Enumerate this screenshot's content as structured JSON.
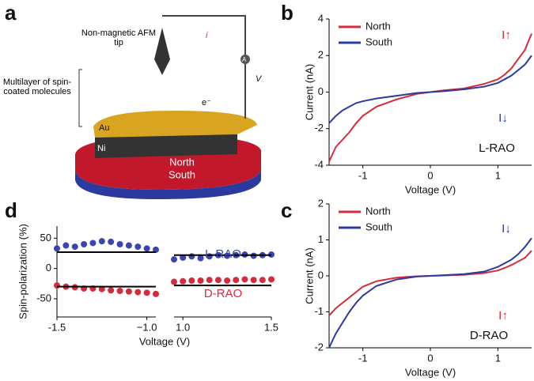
{
  "panels": [
    "a",
    "b",
    "c",
    "d"
  ],
  "diagram": {
    "tip": "Non-magnetic AFM tip",
    "current": "i",
    "voltage": "V",
    "ammeter": "A",
    "electron": "e⁻",
    "multilayer": "Multilayer of spin-coated molecules",
    "gold": "Au",
    "nickel": "Ni",
    "north": "North",
    "south": "South"
  },
  "chart_data": [
    {
      "type": "line",
      "x_label": "Voltage (V)",
      "y_label": "Current (nA)",
      "x": [
        -1.5,
        -1.4,
        -1.3,
        -1.2,
        -1.1,
        -1,
        -0.8,
        -0.5,
        -0.2,
        0,
        0.2,
        0.5,
        0.8,
        1,
        1.1,
        1.2,
        1.3,
        1.4,
        1.5
      ],
      "series": [
        {
          "name": "North",
          "color": "#d62b3a",
          "values": [
            -3.8,
            -3.0,
            -2.6,
            -2.2,
            -1.7,
            -1.3,
            -0.8,
            -0.4,
            -0.1,
            0,
            0.1,
            0.2,
            0.45,
            0.7,
            0.95,
            1.3,
            1.8,
            2.3,
            3.2
          ]
        },
        {
          "name": "South",
          "color": "#2b3a9e",
          "values": [
            -1.7,
            -1.3,
            -1.0,
            -0.8,
            -0.6,
            -0.5,
            -0.35,
            -0.2,
            -0.05,
            0,
            0.05,
            0.15,
            0.3,
            0.5,
            0.7,
            0.9,
            1.2,
            1.5,
            2.0
          ]
        }
      ],
      "xlim": [
        -1.5,
        1.5
      ],
      "xticks": [
        -1,
        0,
        1
      ],
      "ylim": [
        -4,
        4
      ],
      "yticks": [
        -4,
        -2,
        0,
        2,
        4
      ],
      "legend": "upper left",
      "annotations": [
        {
          "text": "I↑",
          "color": "#d62b3a"
        },
        {
          "text": "I↓",
          "color": "#2b3a9e"
        },
        {
          "text": "L-RAO",
          "color": "#111111"
        }
      ]
    },
    {
      "type": "line",
      "x_label": "Voltage (V)",
      "y_label": "Current (nA)",
      "x": [
        -1.5,
        -1.4,
        -1.3,
        -1.2,
        -1.1,
        -1,
        -0.8,
        -0.5,
        -0.2,
        0,
        0.2,
        0.5,
        0.8,
        1,
        1.1,
        1.2,
        1.3,
        1.4,
        1.5
      ],
      "series": [
        {
          "name": "North",
          "color": "#d62b3a",
          "values": [
            -1.1,
            -0.9,
            -0.75,
            -0.6,
            -0.45,
            -0.3,
            -0.15,
            -0.05,
            -0.01,
            0,
            0.01,
            0.03,
            0.08,
            0.15,
            0.22,
            0.3,
            0.4,
            0.5,
            0.7
          ]
        },
        {
          "name": "South",
          "color": "#2b3a9e",
          "values": [
            -2.0,
            -1.6,
            -1.3,
            -1.0,
            -0.75,
            -0.55,
            -0.28,
            -0.1,
            -0.02,
            0,
            0.02,
            0.05,
            0.12,
            0.25,
            0.35,
            0.45,
            0.6,
            0.8,
            1.05
          ]
        }
      ],
      "xlim": [
        -1.5,
        1.5
      ],
      "xticks": [
        -1,
        0,
        1
      ],
      "ylim": [
        -2,
        2
      ],
      "yticks": [
        -2,
        -1,
        0,
        1,
        2
      ],
      "legend": "upper left",
      "annotations": [
        {
          "text": "I↓",
          "color": "#2b3a9e"
        },
        {
          "text": "I↑",
          "color": "#d62b3a"
        },
        {
          "text": "D-RAO",
          "color": "#111111"
        }
      ]
    },
    {
      "type": "scatter",
      "x_label": "Voltage (V)",
      "y_label": "Spin-polarization (%)",
      "x": [
        -1.5,
        -1.45,
        -1.4,
        -1.35,
        -1.3,
        -1.25,
        -1.2,
        -1.15,
        -1.1,
        -1.05,
        -1,
        -0.95
      ],
      "series": [
        {
          "color": "#3a45b0",
          "mode": "markers",
          "values": [
            33,
            38,
            36,
            40,
            42,
            45,
            44,
            40,
            38,
            36,
            33,
            31
          ]
        },
        {
          "color": "#000000",
          "mode": "lines",
          "values": [
            27,
            27,
            27,
            27,
            27,
            27,
            27,
            27,
            27,
            27,
            27,
            27
          ]
        },
        {
          "color": "#d62b3a",
          "mode": "markers",
          "values": [
            -28,
            -30,
            -31,
            -33,
            -33,
            -34,
            -36,
            -37,
            -38,
            -39,
            -40,
            -42
          ]
        },
        {
          "color": "#000000",
          "mode": "lines",
          "values": [
            -30,
            -30,
            -30,
            -30,
            -30,
            -30,
            -30,
            -30,
            -30,
            -30,
            -30,
            -30
          ]
        }
      ],
      "xlim": [
        -1.5,
        -0.95
      ],
      "xticks": [
        -1.5,
        {
          "value": -1,
          "label": "−1.0"
        }
      ],
      "ylim": [
        -80,
        70
      ],
      "yticks": [
        -50,
        0,
        50
      ]
    },
    {
      "type": "scatter",
      "x": [
        0.95,
        1,
        1.05,
        1.1,
        1.15,
        1.2,
        1.25,
        1.3,
        1.35,
        1.4,
        1.45,
        1.5
      ],
      "series": [
        {
          "color": "#3a45b0",
          "mode": "markers",
          "values": [
            15,
            18,
            20,
            17,
            20,
            22,
            21,
            22,
            23,
            21,
            22,
            23
          ]
        },
        {
          "color": "#000000",
          "mode": "lines",
          "values": [
            22,
            22,
            22,
            22,
            22,
            22,
            22,
            22,
            22,
            22,
            22,
            22
          ]
        },
        {
          "color": "#d62b3a",
          "mode": "markers",
          "values": [
            -22,
            -21,
            -20,
            -20,
            -19,
            -19,
            -20,
            -19,
            -18,
            -19,
            -19,
            -18
          ]
        },
        {
          "color": "#000000",
          "mode": "lines",
          "values": [
            -28,
            -28,
            -28,
            -28,
            -28,
            -28,
            -28,
            -28,
            -28,
            -28,
            -28,
            -28
          ]
        }
      ],
      "xlim": [
        0.95,
        1.5
      ],
      "xticks": [
        {
          "value": 1,
          "label": "1.0"
        },
        1.5
      ],
      "ylim": [
        -80,
        70
      ],
      "annotations": [
        {
          "text": "L-RAO",
          "color": "#3a45b0"
        },
        {
          "text": "D-RAO",
          "color": "#d62b3a"
        }
      ]
    }
  ]
}
